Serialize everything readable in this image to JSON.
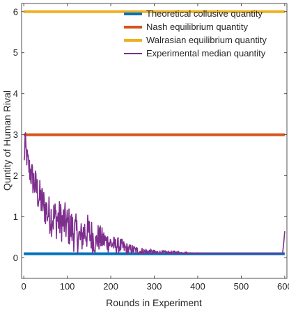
{
  "chart_data": {
    "type": "line",
    "xlabel": "Rounds in Experiment",
    "ylabel": "Quntity of Human Rival",
    "xlim": [
      -5,
      605
    ],
    "ylim": [
      -0.5,
      6.2
    ],
    "x_ticks": [
      0,
      100,
      200,
      300,
      400,
      500,
      600
    ],
    "y_ticks": [
      0,
      1,
      2,
      3,
      4,
      5,
      6
    ],
    "x_tick_labels": [
      "0",
      "100",
      "200",
      "300",
      "400",
      "500",
      "600"
    ],
    "y_tick_labels": [
      "0",
      "1",
      "2",
      "3",
      "4",
      "5",
      "6"
    ],
    "grid": false,
    "legend_position": "top-right",
    "series": [
      {
        "name": "Theoretical collusive quantity",
        "color": "#0072BD",
        "style": "horizontal",
        "x": [
          0,
          600
        ],
        "values": [
          0.1,
          0.1
        ]
      },
      {
        "name": "Nash equilibrium quantity",
        "color": "#D95319",
        "style": "horizontal",
        "x": [
          0,
          600
        ],
        "values": [
          3.0,
          3.0
        ]
      },
      {
        "name": "Walrasian equilibrium quantity",
        "color": "#EDB120",
        "style": "horizontal",
        "x": [
          0,
          600
        ],
        "values": [
          6.0,
          6.0
        ]
      },
      {
        "name": "Experimental median quantity",
        "color": "#7E2F8E",
        "style": "noisy",
        "x": [
          1,
          3,
          5,
          8,
          12,
          18,
          25,
          35,
          45,
          55,
          65,
          75,
          85,
          95,
          105,
          115,
          125,
          130,
          140,
          150,
          160,
          165,
          170,
          180,
          190,
          200,
          210,
          220,
          230,
          240,
          250,
          260,
          270,
          280,
          300,
          320,
          340,
          360,
          380,
          400,
          450,
          500,
          550,
          595,
          598,
          600
        ],
        "values": [
          2.3,
          2.9,
          2.6,
          2.4,
          2.2,
          2.0,
          1.8,
          1.5,
          1.3,
          1.1,
          1.0,
          0.95,
          0.9,
          0.85,
          0.75,
          0.65,
          0.55,
          0.45,
          0.65,
          0.6,
          0.5,
          0.35,
          0.5,
          0.45,
          0.4,
          0.35,
          0.3,
          0.3,
          0.25,
          0.2,
          0.2,
          0.18,
          0.15,
          0.15,
          0.13,
          0.12,
          0.12,
          0.12,
          0.11,
          0.1,
          0.1,
          0.1,
          0.1,
          0.1,
          0.4,
          0.65
        ],
        "noise_band": [
          0.25,
          0.3,
          0.3,
          0.3,
          0.35,
          0.4,
          0.45,
          0.45,
          0.45,
          0.45,
          0.5,
          0.5,
          0.5,
          0.5,
          0.5,
          0.5,
          0.45,
          0.4,
          0.45,
          0.45,
          0.4,
          0.3,
          0.35,
          0.3,
          0.25,
          0.25,
          0.2,
          0.2,
          0.18,
          0.15,
          0.12,
          0.1,
          0.1,
          0.1,
          0.06,
          0.06,
          0.05,
          0.05,
          0.03,
          0.02,
          0.0,
          0.0,
          0.0,
          0.0,
          0.0,
          0.0
        ]
      }
    ]
  }
}
